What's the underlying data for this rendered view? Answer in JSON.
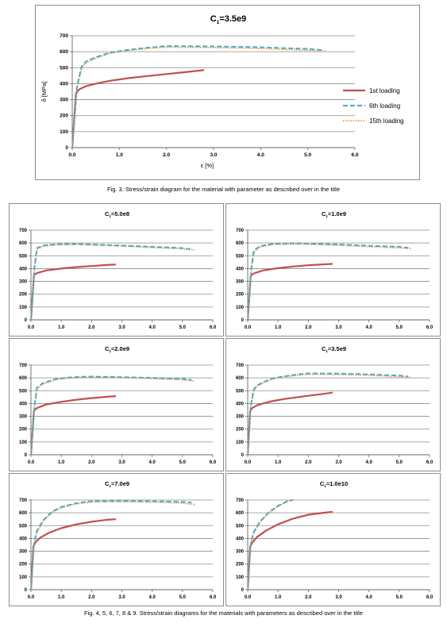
{
  "colors": {
    "first": "#c0504d",
    "sixth": "#4bacc6",
    "fifteenth": "#f79646",
    "grid": "#8c8c8c",
    "frame": "#8c8c8c"
  },
  "captions": {
    "fig3": "Fig. 3. Stress/strain diagram for the material with parameter as described over in the title",
    "fig4_9": "Fig. 4, 5, 6, 7, 8 & 9. Stress/strain diagrams for the materials with parameters as described over in the title"
  },
  "chart_data": [
    {
      "type": "line",
      "title": "C1=3.5e9",
      "title_main": "C",
      "title_sub": "1",
      "title_value": "=3.5e9",
      "xlabel": "ε [%]",
      "ylabel": "δ [MPa]",
      "xlim": [
        0,
        6
      ],
      "ylim": [
        0,
        700
      ],
      "xticks": [
        "0.0",
        "1.0",
        "2.0",
        "3.0",
        "4.0",
        "5.0",
        "6.0"
      ],
      "yticks": [
        "0",
        "100",
        "200",
        "300",
        "400",
        "500",
        "600",
        "700"
      ],
      "grid": true,
      "legend_position": "right",
      "series": [
        {
          "name": "1st loading",
          "style": "solid",
          "x": [
            0,
            0.08,
            0.15,
            0.3,
            0.5,
            0.8,
            1.2,
            1.6,
            2.0,
            2.4,
            2.8
          ],
          "y": [
            0,
            340,
            365,
            385,
            400,
            418,
            435,
            448,
            460,
            472,
            485
          ]
        },
        {
          "name": "6th loading",
          "style": "dashed",
          "x": [
            0,
            0.1,
            0.2,
            0.3,
            0.5,
            0.8,
            1.2,
            1.6,
            2.0,
            3.0,
            4.0,
            4.5,
            5.0,
            5.3
          ],
          "y": [
            0,
            380,
            510,
            540,
            565,
            595,
            612,
            625,
            635,
            633,
            628,
            622,
            618,
            610
          ]
        },
        {
          "name": "15th loading",
          "style": "dotted",
          "x": [
            0,
            0.1,
            0.2,
            0.3,
            0.5,
            0.8,
            1.2,
            1.6,
            2.0,
            3.0,
            4.0,
            4.5,
            5.0,
            5.4
          ],
          "y": [
            0,
            370,
            500,
            532,
            560,
            590,
            608,
            620,
            628,
            626,
            620,
            615,
            608,
            602
          ]
        }
      ]
    },
    {
      "type": "line",
      "title": "C1=5.0e8",
      "title_main": "C",
      "title_sub": "1",
      "title_value": "=5.0e8",
      "xlim": [
        0,
        6
      ],
      "ylim": [
        0,
        700
      ],
      "xticks": [
        "0.0",
        "1.0",
        "2.0",
        "3.0",
        "4.0",
        "5.0",
        "6.0"
      ],
      "yticks": [
        "0",
        "100",
        "200",
        "300",
        "400",
        "500",
        "600",
        "700"
      ],
      "grid": true,
      "series": [
        {
          "name": "1st loading",
          "style": "solid",
          "x": [
            0,
            0.1,
            0.2,
            0.5,
            1.0,
            1.5,
            2.0,
            2.5,
            2.8
          ],
          "y": [
            0,
            350,
            365,
            385,
            400,
            412,
            420,
            428,
            432
          ]
        },
        {
          "name": "6th loading",
          "style": "dashed",
          "x": [
            0,
            0.12,
            0.2,
            0.4,
            0.8,
            1.5,
            2.0,
            3.0,
            4.0,
            5.0,
            5.3
          ],
          "y": [
            0,
            420,
            560,
            580,
            590,
            592,
            588,
            580,
            570,
            560,
            550
          ]
        },
        {
          "name": "15th loading",
          "style": "dotted",
          "x": [
            0,
            0.12,
            0.2,
            0.4,
            0.8,
            1.5,
            2.0,
            3.0,
            4.0,
            5.0,
            5.4
          ],
          "y": [
            0,
            410,
            550,
            575,
            585,
            588,
            585,
            576,
            565,
            555,
            545
          ]
        }
      ]
    },
    {
      "type": "line",
      "title": "C1=1.0e9",
      "title_main": "C",
      "title_sub": "1",
      "title_value": "=1.0e9",
      "xlim": [
        0,
        6
      ],
      "ylim": [
        0,
        700
      ],
      "xticks": [
        "0.0",
        "1.0",
        "2.0",
        "3.0",
        "4.0",
        "5.0",
        "6.0"
      ],
      "yticks": [
        "0",
        "100",
        "200",
        "300",
        "400",
        "500",
        "600",
        "700"
      ],
      "grid": true,
      "series": [
        {
          "name": "1st loading",
          "style": "solid",
          "x": [
            0,
            0.1,
            0.2,
            0.5,
            1.0,
            1.5,
            2.0,
            2.5,
            2.8
          ],
          "y": [
            0,
            345,
            362,
            385,
            403,
            416,
            426,
            433,
            437
          ]
        },
        {
          "name": "6th loading",
          "style": "dashed",
          "x": [
            0,
            0.12,
            0.2,
            0.4,
            0.8,
            1.5,
            2.0,
            3.0,
            4.0,
            5.0,
            5.3
          ],
          "y": [
            0,
            400,
            540,
            575,
            592,
            597,
            595,
            588,
            578,
            570,
            562
          ]
        },
        {
          "name": "15th loading",
          "style": "dotted",
          "x": [
            0,
            0.12,
            0.2,
            0.4,
            0.8,
            1.5,
            2.0,
            3.0,
            4.0,
            5.0,
            5.4
          ],
          "y": [
            0,
            390,
            530,
            568,
            587,
            592,
            590,
            582,
            572,
            562,
            555
          ]
        }
      ]
    },
    {
      "type": "line",
      "title": "C1=2.0e9",
      "title_main": "C",
      "title_sub": "1",
      "title_value": "=2.0e9",
      "xlim": [
        0,
        6
      ],
      "ylim": [
        0,
        700
      ],
      "xticks": [
        "0.0",
        "1.0",
        "2.0",
        "3.0",
        "4.0",
        "5.0",
        "6.0"
      ],
      "yticks": [
        "0",
        "100",
        "200",
        "300",
        "400",
        "500",
        "600",
        "700"
      ],
      "grid": true,
      "series": [
        {
          "name": "1st loading",
          "style": "solid",
          "x": [
            0,
            0.1,
            0.2,
            0.5,
            1.0,
            1.5,
            2.0,
            2.5,
            2.8
          ],
          "y": [
            0,
            345,
            365,
            392,
            413,
            430,
            442,
            452,
            458
          ]
        },
        {
          "name": "6th loading",
          "style": "dashed",
          "x": [
            0,
            0.12,
            0.2,
            0.4,
            0.8,
            1.2,
            1.6,
            2.0,
            3.0,
            4.0,
            5.0,
            5.3
          ],
          "y": [
            0,
            390,
            525,
            560,
            590,
            602,
            608,
            610,
            606,
            600,
            592,
            585
          ]
        },
        {
          "name": "15th loading",
          "style": "dotted",
          "x": [
            0,
            0.12,
            0.2,
            0.4,
            0.8,
            1.2,
            1.6,
            2.0,
            3.0,
            4.0,
            5.0,
            5.4
          ],
          "y": [
            0,
            380,
            515,
            552,
            585,
            598,
            603,
            605,
            602,
            595,
            585,
            575
          ]
        }
      ]
    },
    {
      "type": "line",
      "title": "C1=3.5e9",
      "title_main": "C",
      "title_sub": "1",
      "title_value": "=3.5e9",
      "xlim": [
        0,
        6
      ],
      "ylim": [
        0,
        700
      ],
      "xticks": [
        "0.0",
        "1.0",
        "2.0",
        "3.0",
        "4.0",
        "5.0",
        "6.0"
      ],
      "yticks": [
        "0",
        "100",
        "200",
        "300",
        "400",
        "500",
        "600",
        "700"
      ],
      "grid": true,
      "series": [
        {
          "name": "1st loading",
          "style": "solid",
          "x": [
            0,
            0.08,
            0.15,
            0.3,
            0.5,
            0.8,
            1.2,
            1.6,
            2.0,
            2.4,
            2.8
          ],
          "y": [
            0,
            340,
            365,
            385,
            400,
            418,
            435,
            448,
            460,
            472,
            485
          ]
        },
        {
          "name": "6th loading",
          "style": "dashed",
          "x": [
            0,
            0.1,
            0.2,
            0.3,
            0.5,
            0.8,
            1.2,
            1.6,
            2.0,
            3.0,
            4.0,
            4.5,
            5.0,
            5.3
          ],
          "y": [
            0,
            380,
            510,
            540,
            565,
            595,
            612,
            625,
            635,
            633,
            628,
            622,
            618,
            610
          ]
        },
        {
          "name": "15th loading",
          "style": "dotted",
          "x": [
            0,
            0.1,
            0.2,
            0.3,
            0.5,
            0.8,
            1.2,
            1.6,
            2.0,
            3.0,
            4.0,
            4.5,
            5.0,
            5.4
          ],
          "y": [
            0,
            370,
            500,
            532,
            560,
            590,
            608,
            620,
            628,
            626,
            620,
            615,
            608,
            602
          ]
        }
      ]
    },
    {
      "type": "line",
      "title": "C1=7.0e9",
      "title_main": "C",
      "title_sub": "1",
      "title_value": "=7.0e9",
      "xlim": [
        0,
        6
      ],
      "ylim": [
        0,
        700
      ],
      "xticks": [
        "0.0",
        "1.0",
        "2.0",
        "3.0",
        "4.0",
        "5.0",
        "6.0"
      ],
      "yticks": [
        "0",
        "100",
        "200",
        "300",
        "400",
        "500",
        "600",
        "700"
      ],
      "grid": true,
      "series": [
        {
          "name": "1st loading",
          "style": "solid",
          "x": [
            0,
            0.08,
            0.15,
            0.3,
            0.6,
            1.0,
            1.5,
            2.0,
            2.5,
            2.8
          ],
          "y": [
            0,
            340,
            370,
            405,
            445,
            480,
            510,
            530,
            545,
            550
          ]
        },
        {
          "name": "6th loading",
          "style": "dashed",
          "x": [
            0,
            0.1,
            0.2,
            0.4,
            0.7,
            1.0,
            1.5,
            2.0,
            3.0,
            4.0,
            5.0,
            5.3
          ],
          "y": [
            0,
            360,
            460,
            540,
            610,
            645,
            675,
            690,
            692,
            690,
            685,
            680
          ]
        },
        {
          "name": "15th loading",
          "style": "dotted",
          "x": [
            0,
            0.1,
            0.2,
            0.4,
            0.7,
            1.0,
            1.5,
            2.0,
            3.0,
            4.0,
            5.0,
            5.4
          ],
          "y": [
            0,
            350,
            450,
            532,
            605,
            640,
            670,
            685,
            688,
            684,
            675,
            665
          ]
        }
      ]
    },
    {
      "type": "line",
      "title": "C1=1.0e10",
      "title_main": "C",
      "title_sub": "1",
      "title_value": "=1.0e10",
      "xlim": [
        0,
        6
      ],
      "ylim": [
        0,
        700
      ],
      "xticks": [
        "0.0",
        "1.0",
        "2.0",
        "3.0",
        "4.0",
        "5.0",
        "6.0"
      ],
      "yticks": [
        "0",
        "100",
        "200",
        "300",
        "400",
        "500",
        "600",
        "700"
      ],
      "grid": true,
      "series": [
        {
          "name": "1st loading",
          "style": "solid",
          "x": [
            0,
            0.08,
            0.15,
            0.3,
            0.6,
            1.0,
            1.5,
            2.0,
            2.5,
            2.8
          ],
          "y": [
            0,
            335,
            368,
            410,
            460,
            510,
            555,
            585,
            600,
            607
          ]
        },
        {
          "name": "6th loading",
          "style": "dashed",
          "x": [
            0,
            0.1,
            0.2,
            0.4,
            0.7,
            1.0,
            1.3,
            1.5
          ],
          "y": [
            0,
            360,
            450,
            530,
            605,
            655,
            690,
            700
          ]
        },
        {
          "name": "15th loading",
          "style": "dotted",
          "x": [
            0,
            0.1,
            0.2,
            0.4,
            0.7,
            1.0,
            1.3,
            1.5
          ],
          "y": [
            0,
            355,
            445,
            525,
            600,
            650,
            688,
            700
          ]
        }
      ]
    }
  ]
}
